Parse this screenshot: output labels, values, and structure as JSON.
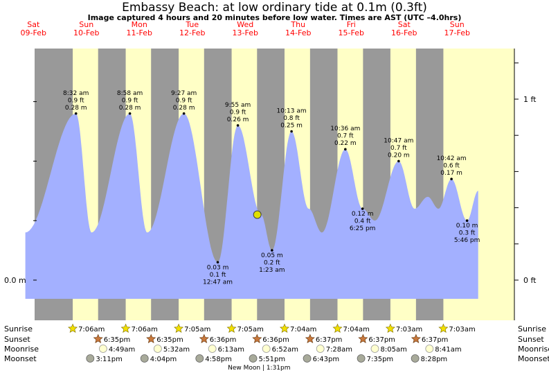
{
  "title": "Embassy Beach: at low  ordinary tide at 0.1m (0.3ft)",
  "subtitle": "Image captured 4 hours and 20 minutes before low water. Times are AST (UTC –4.0hrs)",
  "colors": {
    "night": "#999999",
    "day": "#ffffc6",
    "tide_fill": "#a3b0ff",
    "day_label": "#ff0000",
    "marker": "#e0e000",
    "sun_icon": "#f2e000",
    "sunset_icon": "#c8783c",
    "moonrise_icon": "#ffffd0",
    "moonset_icon": "#a8aa9a"
  },
  "days": [
    {
      "dow": "Sat",
      "date": "09-Feb"
    },
    {
      "dow": "Sun",
      "date": "10-Feb"
    },
    {
      "dow": "Mon",
      "date": "11-Feb"
    },
    {
      "dow": "Tue",
      "date": "12-Feb"
    },
    {
      "dow": "Wed",
      "date": "13-Feb"
    },
    {
      "dow": "Thu",
      "date": "14-Feb"
    },
    {
      "dow": "Fri",
      "date": "15-Feb"
    },
    {
      "dow": "Sat",
      "date": "16-Feb"
    },
    {
      "dow": "Sun",
      "date": "17-Feb"
    }
  ],
  "axes": {
    "left_label": "0.0 m",
    "right_labels": [
      "1 ft",
      "0 ft"
    ]
  },
  "chart_data": {
    "type": "area",
    "x_unit": "day (0 = 09-Feb 00:00 AST)",
    "y_unit": "m",
    "ylim": [
      0.0,
      0.3
    ],
    "tides": [
      {
        "x": 0.4,
        "y": 0.08
      },
      {
        "x": 1.356,
        "y": 0.28,
        "time": "8:32 am",
        "ft": "0.9 ft",
        "m": "0.28 m",
        "type": "high"
      },
      {
        "x": 1.65,
        "y": 0.08
      },
      {
        "x": 2.374,
        "y": 0.28,
        "time": "8:58 am",
        "ft": "0.9 ft",
        "m": "0.28 m",
        "type": "high"
      },
      {
        "x": 2.7,
        "y": 0.08
      },
      {
        "x": 3.394,
        "y": 0.28,
        "time": "9:27 am",
        "ft": "0.9 ft",
        "m": "0.28 m",
        "type": "high"
      },
      {
        "x": 4.033,
        "y": 0.03,
        "time": "12:47 am",
        "ft": "0.1 ft",
        "m": "0.03 m",
        "type": "low"
      },
      {
        "x": 4.413,
        "y": 0.26,
        "time": "9:55 am",
        "ft": "0.9 ft",
        "m": "0.26 m",
        "type": "high"
      },
      {
        "x": 4.85,
        "y": 0.11
      },
      {
        "x": 5.057,
        "y": 0.05,
        "time": "1:23 am",
        "ft": "0.2 ft",
        "m": "0.05 m",
        "type": "low"
      },
      {
        "x": 5.426,
        "y": 0.25,
        "time": "10:13 am",
        "ft": "0.8 ft",
        "m": "0.25 m",
        "type": "high"
      },
      {
        "x": 5.75,
        "y": 0.12
      },
      {
        "x": 6.0,
        "y": 0.08
      },
      {
        "x": 6.442,
        "y": 0.22,
        "time": "10:36 am",
        "ft": "0.7 ft",
        "m": "0.22 m",
        "type": "high"
      },
      {
        "x": 6.767,
        "y": 0.12,
        "time": "6:25 pm",
        "ft": "0.4 ft",
        "m": "0.12 m",
        "type": "low"
      },
      {
        "x": 7.0,
        "y": 0.1
      },
      {
        "x": 7.449,
        "y": 0.2,
        "time": "10:47 am",
        "ft": "0.7 ft",
        "m": "0.20 m",
        "type": "high"
      },
      {
        "x": 7.75,
        "y": 0.12
      },
      {
        "x": 8.0,
        "y": 0.14
      },
      {
        "x": 8.2,
        "y": 0.12
      },
      {
        "x": 8.446,
        "y": 0.17,
        "time": "10:42 am",
        "ft": "0.6 ft",
        "m": "0.17 m",
        "type": "high"
      },
      {
        "x": 8.74,
        "y": 0.1,
        "time": "5:46 pm",
        "ft": "0.3 ft",
        "m": "0.10 m",
        "type": "low"
      },
      {
        "x": 8.95,
        "y": 0.15
      }
    ],
    "current_marker": {
      "x": 4.78,
      "y": 0.11
    }
  },
  "astro": {
    "row_labels": [
      "Sunrise",
      "Sunset",
      "Moonrise",
      "Moonset"
    ],
    "sunrise": [
      {
        "x": 1.295,
        "label": "7:06am"
      },
      {
        "x": 2.295,
        "label": "7:06am"
      },
      {
        "x": 3.295,
        "label": "7:05am"
      },
      {
        "x": 4.295,
        "label": "7:05am"
      },
      {
        "x": 5.294,
        "label": "7:04am"
      },
      {
        "x": 6.294,
        "label": "7:04am"
      },
      {
        "x": 7.293,
        "label": "7:03am"
      },
      {
        "x": 8.293,
        "label": "7:03am"
      }
    ],
    "sunset": [
      {
        "x": 1.774,
        "label": "6:35pm"
      },
      {
        "x": 2.774,
        "label": "6:35pm"
      },
      {
        "x": 3.775,
        "label": "6:36pm"
      },
      {
        "x": 4.775,
        "label": "6:36pm"
      },
      {
        "x": 5.776,
        "label": "6:37pm"
      },
      {
        "x": 6.776,
        "label": "6:37pm"
      },
      {
        "x": 7.776,
        "label": "6:37pm"
      }
    ],
    "moonrise": [
      {
        "x": 1.868,
        "label": "4:49am"
      },
      {
        "x": 2.9,
        "label": "5:32am"
      },
      {
        "x": 3.93,
        "label": "6:13am"
      },
      {
        "x": 4.95,
        "label": "6:52am"
      },
      {
        "x": 5.97,
        "label": "7:28am"
      },
      {
        "x": 7.0,
        "label": "8:05am"
      },
      {
        "x": 8.03,
        "label": "8:41am"
      }
    ],
    "moonset": [
      {
        "x": 1.625,
        "label": "3:11pm"
      },
      {
        "x": 2.65,
        "label": "4:04pm"
      },
      {
        "x": 3.69,
        "label": "4:58pm"
      },
      {
        "x": 4.7,
        "label": "5:51pm"
      },
      {
        "x": 5.72,
        "label": "6:43pm"
      },
      {
        "x": 6.74,
        "label": "7:35pm"
      },
      {
        "x": 7.76,
        "label": "8:28pm"
      }
    ],
    "moon_phase": "New Moon | 1:31pm"
  }
}
